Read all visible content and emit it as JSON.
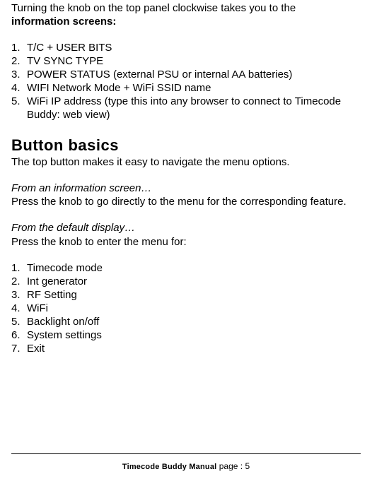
{
  "intro": {
    "line1": "Turning the knob on the top panel clockwise takes you to the",
    "line2_bold": "information screens:"
  },
  "info_screens": [
    "T/C + USER BITS",
    "TV SYNC TYPE",
    "POWER STATUS (external PSU or internal AA batteries)",
    "WIFI Network Mode + WiFi SSID name",
    "WiFi IP address (type this into any browser to connect to Timecode Buddy: web view)"
  ],
  "section": {
    "heading": "Button basics",
    "subheading": "The top button makes it easy to navigate the menu options.",
    "from_info_title": "From an information screen…",
    "from_info_body": "Press the knob to go directly to the menu for the corresponding feature.",
    "from_default_title": "From the default display…",
    "from_default_body": "Press the knob to enter the menu for:"
  },
  "menu_items": [
    "Timecode mode",
    "Int generator",
    "RF Setting",
    "WiFi",
    "Backlight on/off",
    "System settings",
    "Exit"
  ],
  "footer": {
    "title": "Timecode Buddy Manual",
    "page_label": " page : 5"
  }
}
